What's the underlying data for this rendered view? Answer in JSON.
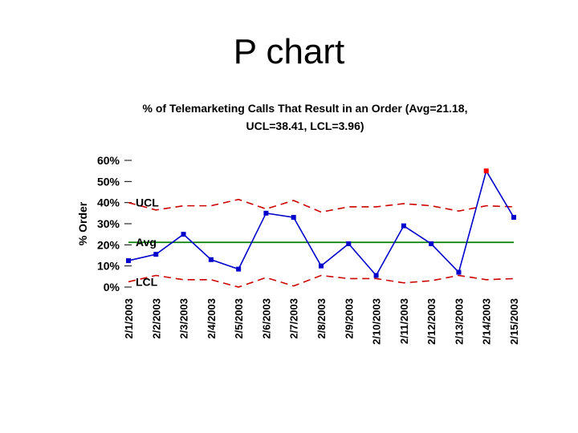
{
  "slide": {
    "title": "P chart"
  },
  "chart_data": {
    "type": "line",
    "title_line1": "% of Telemarketing Calls That Result in an Order (Avg=21.18,",
    "title_line2": "UCL=38.41, LCL=3.96)",
    "ylabel": "% Order",
    "xlabel": "",
    "ylim": [
      0,
      60
    ],
    "yticks": [
      "0%",
      "10%",
      "20%",
      "30%",
      "40%",
      "50%",
      "60%"
    ],
    "categories": [
      "2/1/2003",
      "2/2/2003",
      "2/3/2003",
      "2/4/2003",
      "2/5/2003",
      "2/6/2003",
      "2/7/2003",
      "2/8/2003",
      "2/9/2003",
      "2/10/2003",
      "2/11/2003",
      "2/12/2003",
      "2/13/2003",
      "2/14/2003",
      "2/15/2003"
    ],
    "series": [
      {
        "values": [
          12.5,
          15.5,
          25.0,
          13.0,
          8.5,
          35.0,
          33.0,
          10.0,
          20.5,
          5.5,
          29.0,
          20.5,
          7.0,
          55.0,
          33.0
        ],
        "color": "#0000cc",
        "out_of_control_color": "#ff0000"
      },
      {
        "name": "UCL",
        "values": [
          40.0,
          36.5,
          38.5,
          38.5,
          41.5,
          37.0,
          41.0,
          35.5,
          38.0,
          38.0,
          39.5,
          38.5,
          36.0,
          38.5,
          38.0
        ],
        "color": "#cc0000",
        "style": "dashed"
      },
      {
        "name": "Avg",
        "values": [
          21.18,
          21.18,
          21.18,
          21.18,
          21.18,
          21.18,
          21.18,
          21.18,
          21.18,
          21.18,
          21.18,
          21.18,
          21.18,
          21.18,
          21.18
        ],
        "color": "#008000",
        "style": "solid"
      },
      {
        "name": "LCL",
        "values": [
          2.5,
          5.5,
          3.5,
          3.5,
          0.0,
          4.5,
          0.5,
          5.5,
          4.0,
          4.0,
          2.0,
          3.0,
          5.5,
          3.5,
          4.0
        ],
        "color": "#cc0000",
        "style": "dashed"
      }
    ],
    "line_labels": [
      "UCL",
      "Avg",
      "LCL"
    ],
    "grid": false,
    "legend": "none"
  }
}
